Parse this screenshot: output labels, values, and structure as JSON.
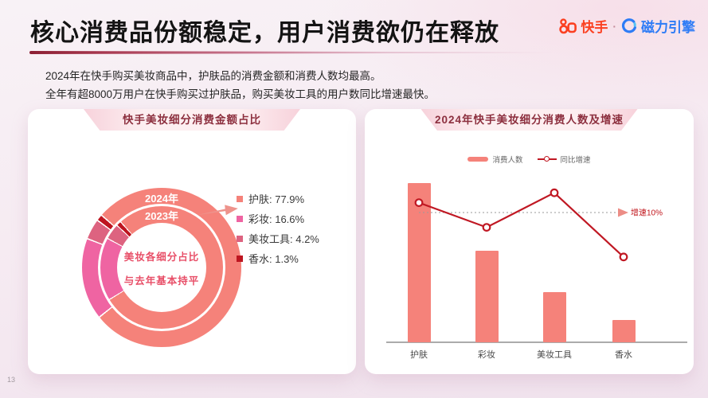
{
  "header": {
    "title": "核心消费品份额稳定，用户消费欲仍在释放",
    "brand": {
      "kuaishou": "快手",
      "separator": "·",
      "engine": "磁力引擎"
    }
  },
  "intro": {
    "line1": "2024年在快手购买美妆商品中，护肤品的消费金额和消费人数均最高。",
    "line2": "全年有超8000万用户在快手购买过护肤品，购买美妆工具的用户数同比增速最快。"
  },
  "footer": {
    "page_number": "13"
  },
  "colors": {
    "title_underline": "#8C1F33",
    "kuaishou_orange": "#FB4021",
    "engine_blue": "#2E7CF6",
    "ribbon_text": "#8C2F3E",
    "donut_center_text": "#E84F68",
    "dashed_reference": "#9A9A9A"
  },
  "chart_data": [
    {
      "id": "donut",
      "type": "pie",
      "title": "快手美妆细分消费金额占比",
      "rings": [
        {
          "label": "2024年",
          "start_deg": 311
        },
        {
          "label": "2023年",
          "start_deg": 318
        }
      ],
      "categories": [
        "护肤",
        "彩妆",
        "美妆工具",
        "香水"
      ],
      "values": [
        77.9,
        16.6,
        4.2,
        1.3
      ],
      "colors": [
        "#F5827A",
        "#EF64A2",
        "#DD6380",
        "#BE1520"
      ],
      "legend_position": "right",
      "center_text": [
        "美妆各细分占比",
        "与去年基本持平"
      ]
    },
    {
      "id": "combo",
      "type": "bar",
      "title": "2024年快手美妆细分消费人数及增速",
      "categories": [
        "护肤",
        "彩妆",
        "美妆工具",
        "香水"
      ],
      "series": [
        {
          "name": "消费人数",
          "type": "bar",
          "values_relative_pct_of_max": [
            100,
            57.5,
            31.5,
            14
          ]
        },
        {
          "name": "同比增速",
          "type": "line",
          "values_pct": [
            12,
            7,
            14,
            1
          ]
        }
      ],
      "reference_line": {
        "label": "增速10%",
        "value_pct": 10
      },
      "bar_color": "#F5827A",
      "line_color": "#C01823",
      "grid": "off",
      "note": "y轴无刻度；柱高为相对值，折线按10%参考线估读"
    }
  ]
}
